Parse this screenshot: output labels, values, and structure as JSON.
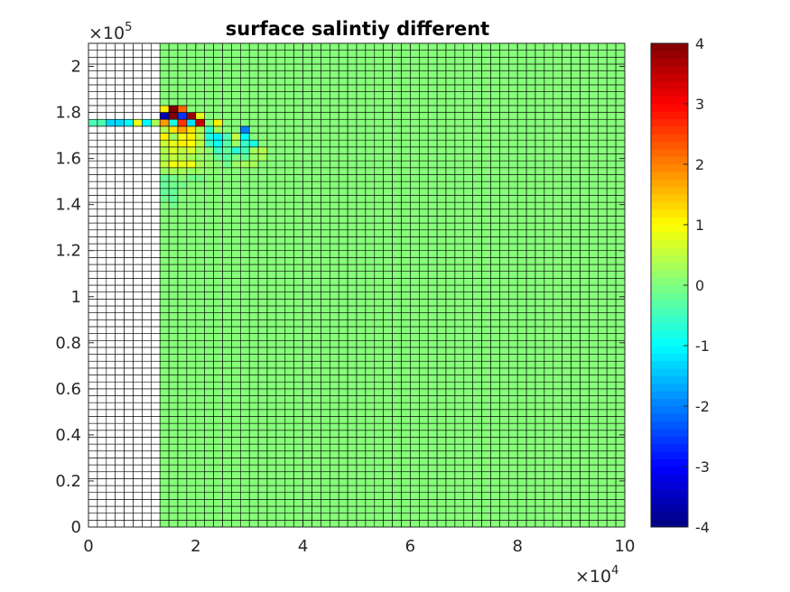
{
  "chart_data": {
    "type": "heatmap",
    "title": "surface salintiy different",
    "xlabel": "",
    "ylabel": "",
    "x_multiplier": {
      "base": "×10",
      "exponent": "4"
    },
    "y_multiplier": {
      "base": "×10",
      "exponent": "5"
    },
    "xlim": [
      0,
      10
    ],
    "ylim": [
      0,
      2.1
    ],
    "x_ticks": [
      0,
      2,
      4,
      6,
      8,
      10
    ],
    "x_tick_labels": [
      "0",
      "2",
      "4",
      "6",
      "8",
      "10"
    ],
    "y_ticks": [
      0,
      0.2,
      0.4,
      0.6,
      0.8,
      1,
      1.2,
      1.4,
      1.6,
      1.8,
      2
    ],
    "y_tick_labels": [
      "0",
      "0.2",
      "0.4",
      "0.6",
      "0.8",
      "1",
      "1.2",
      "1.4",
      "1.6",
      "1.8",
      "2"
    ],
    "grid": {
      "columns": 60,
      "rows": 70,
      "nan_columns": 8
    },
    "background_value": 0.05,
    "colorbar": {
      "colormap": "jet",
      "clim": [
        -4,
        4
      ],
      "ticks": [
        4,
        3,
        2,
        1,
        0,
        -1,
        -2,
        -3,
        -4
      ],
      "tick_labels": [
        "4",
        "3",
        "2",
        "1",
        "0",
        "-1",
        "-2",
        "-3",
        "-4"
      ]
    },
    "anomalies": [
      {
        "row": 58,
        "col": 0,
        "value": -0.4
      },
      {
        "row": 58,
        "col": 1,
        "value": -0.4
      },
      {
        "row": 58,
        "col": 2,
        "value": -1.3
      },
      {
        "row": 58,
        "col": 3,
        "value": -1.3
      },
      {
        "row": 58,
        "col": 4,
        "value": -1.0
      },
      {
        "row": 58,
        "col": 5,
        "value": 0.9
      },
      {
        "row": 58,
        "col": 6,
        "value": -1.0
      },
      {
        "row": 58,
        "col": 7,
        "value": 0.3
      },
      {
        "row": 60,
        "col": 8,
        "value": 1.1
      },
      {
        "row": 60,
        "col": 9,
        "value": 4.0
      },
      {
        "row": 60,
        "col": 10,
        "value": 2.2
      },
      {
        "row": 59,
        "col": 8,
        "value": -3.6
      },
      {
        "row": 59,
        "col": 9,
        "value": 4.0
      },
      {
        "row": 59,
        "col": 10,
        "value": -2.6
      },
      {
        "row": 59,
        "col": 11,
        "value": 3.8
      },
      {
        "row": 59,
        "col": 12,
        "value": 0.8
      },
      {
        "row": 58,
        "col": 8,
        "value": 1.8
      },
      {
        "row": 58,
        "col": 9,
        "value": -0.8
      },
      {
        "row": 58,
        "col": 10,
        "value": 2.6
      },
      {
        "row": 58,
        "col": 11,
        "value": -1.2
      },
      {
        "row": 58,
        "col": 12,
        "value": 3.4
      },
      {
        "row": 58,
        "col": 14,
        "value": 1.1
      },
      {
        "row": 57,
        "col": 8,
        "value": 0.4
      },
      {
        "row": 57,
        "col": 9,
        "value": 1.2
      },
      {
        "row": 57,
        "col": 10,
        "value": 1.7
      },
      {
        "row": 57,
        "col": 11,
        "value": 1.2
      },
      {
        "row": 57,
        "col": 12,
        "value": 0.4
      },
      {
        "row": 57,
        "col": 13,
        "value": -0.6
      },
      {
        "row": 57,
        "col": 14,
        "value": 0.3
      },
      {
        "row": 57,
        "col": 17,
        "value": -2.0
      },
      {
        "row": 56,
        "col": 8,
        "value": 1.1
      },
      {
        "row": 56,
        "col": 9,
        "value": 0.2
      },
      {
        "row": 56,
        "col": 10,
        "value": 0.9
      },
      {
        "row": 56,
        "col": 11,
        "value": 1.1
      },
      {
        "row": 56,
        "col": 12,
        "value": 0.4
      },
      {
        "row": 56,
        "col": 13,
        "value": -0.8
      },
      {
        "row": 56,
        "col": 14,
        "value": -1.1
      },
      {
        "row": 56,
        "col": 15,
        "value": -0.4
      },
      {
        "row": 56,
        "col": 16,
        "value": 0.5
      },
      {
        "row": 56,
        "col": 17,
        "value": -1.0
      },
      {
        "row": 55,
        "col": 8,
        "value": 0.6
      },
      {
        "row": 55,
        "col": 9,
        "value": 0.8
      },
      {
        "row": 55,
        "col": 10,
        "value": 1.1
      },
      {
        "row": 55,
        "col": 11,
        "value": 1.0
      },
      {
        "row": 55,
        "col": 12,
        "value": 0.5
      },
      {
        "row": 55,
        "col": 13,
        "value": -0.5
      },
      {
        "row": 55,
        "col": 14,
        "value": -0.9
      },
      {
        "row": 55,
        "col": 15,
        "value": -0.3
      },
      {
        "row": 55,
        "col": 16,
        "value": 0.2
      },
      {
        "row": 55,
        "col": 17,
        "value": -0.6
      },
      {
        "row": 55,
        "col": 18,
        "value": -0.8
      },
      {
        "row": 54,
        "col": 8,
        "value": 0.4
      },
      {
        "row": 54,
        "col": 9,
        "value": 0.7
      },
      {
        "row": 54,
        "col": 10,
        "value": 0.5
      },
      {
        "row": 54,
        "col": 11,
        "value": 0.7
      },
      {
        "row": 54,
        "col": 12,
        "value": 0.3
      },
      {
        "row": 54,
        "col": 13,
        "value": 0.1
      },
      {
        "row": 54,
        "col": 14,
        "value": -0.5
      },
      {
        "row": 54,
        "col": 15,
        "value": -0.2
      },
      {
        "row": 54,
        "col": 16,
        "value": -0.7
      },
      {
        "row": 54,
        "col": 17,
        "value": -0.5
      },
      {
        "row": 54,
        "col": 18,
        "value": 0.3
      },
      {
        "row": 54,
        "col": 19,
        "value": 0.4
      },
      {
        "row": 53,
        "col": 8,
        "value": 0.3
      },
      {
        "row": 53,
        "col": 9,
        "value": 0.5
      },
      {
        "row": 53,
        "col": 10,
        "value": 0.4
      },
      {
        "row": 53,
        "col": 11,
        "value": 0.3
      },
      {
        "row": 53,
        "col": 12,
        "value": 0.2
      },
      {
        "row": 53,
        "col": 13,
        "value": 0.1
      },
      {
        "row": 53,
        "col": 14,
        "value": -0.2
      },
      {
        "row": 53,
        "col": 15,
        "value": -0.3
      },
      {
        "row": 53,
        "col": 16,
        "value": 0.0
      },
      {
        "row": 53,
        "col": 17,
        "value": -0.2
      },
      {
        "row": 53,
        "col": 18,
        "value": 0.2
      },
      {
        "row": 53,
        "col": 19,
        "value": 0.3
      },
      {
        "row": 52,
        "col": 8,
        "value": 0.5
      },
      {
        "row": 52,
        "col": 9,
        "value": 0.9
      },
      {
        "row": 52,
        "col": 10,
        "value": 0.8
      },
      {
        "row": 52,
        "col": 11,
        "value": 0.9
      },
      {
        "row": 52,
        "col": 12,
        "value": 0.3
      },
      {
        "row": 52,
        "col": 13,
        "value": 0.2
      },
      {
        "row": 52,
        "col": 14,
        "value": 0.1
      },
      {
        "row": 52,
        "col": 15,
        "value": -0.1
      },
      {
        "row": 52,
        "col": 16,
        "value": 0.2
      },
      {
        "row": 52,
        "col": 17,
        "value": 0.3
      },
      {
        "row": 52,
        "col": 18,
        "value": 0.3
      },
      {
        "row": 51,
        "col": 8,
        "value": 0.2
      },
      {
        "row": 51,
        "col": 9,
        "value": 0.3
      },
      {
        "row": 51,
        "col": 10,
        "value": 0.3
      },
      {
        "row": 51,
        "col": 11,
        "value": 0.2
      },
      {
        "row": 51,
        "col": 12,
        "value": 0.2
      },
      {
        "row": 51,
        "col": 13,
        "value": 0.1
      },
      {
        "row": 51,
        "col": 14,
        "value": 0.1
      },
      {
        "row": 50,
        "col": 8,
        "value": -0.2
      },
      {
        "row": 50,
        "col": 9,
        "value": -0.1
      },
      {
        "row": 50,
        "col": 10,
        "value": 0.1
      },
      {
        "row": 50,
        "col": 11,
        "value": -0.1
      },
      {
        "row": 50,
        "col": 12,
        "value": -0.1
      },
      {
        "row": 49,
        "col": 8,
        "value": -0.2
      },
      {
        "row": 49,
        "col": 9,
        "value": -0.1
      },
      {
        "row": 49,
        "col": 10,
        "value": -0.1
      },
      {
        "row": 48,
        "col": 8,
        "value": -0.2
      },
      {
        "row": 48,
        "col": 9,
        "value": -0.2
      },
      {
        "row": 47,
        "col": 8,
        "value": -0.1
      },
      {
        "row": 47,
        "col": 9,
        "value": -0.2
      },
      {
        "row": 46,
        "col": 9,
        "value": -0.1
      }
    ]
  }
}
